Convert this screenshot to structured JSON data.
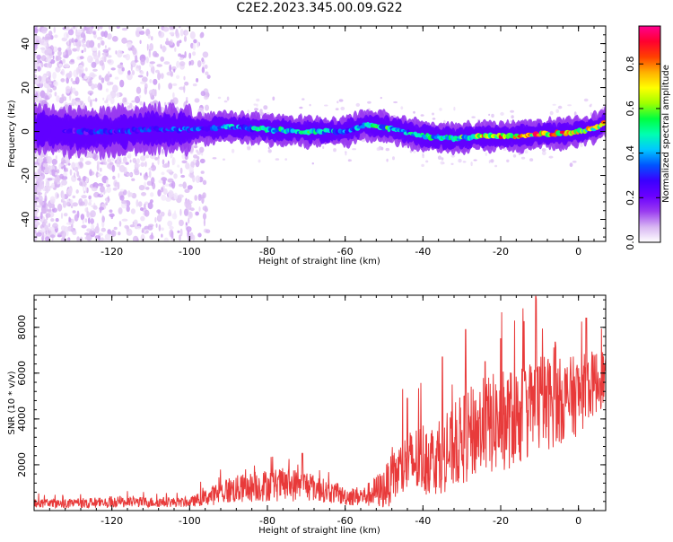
{
  "figure": {
    "title": "C2E2.2023.345.00.09.G22"
  },
  "chart_data": [
    {
      "type": "heatmap",
      "title": "",
      "xlabel": "Height of straight line (km)",
      "ylabel": "Frequency (Hz)",
      "xlim": [
        -140,
        7
      ],
      "ylim": [
        -50,
        48
      ],
      "x_ticks": [
        -120,
        -100,
        -80,
        -60,
        -40,
        -20,
        0
      ],
      "y_ticks": [
        -40,
        -20,
        0,
        20,
        40
      ],
      "grid": false,
      "colorbar": {
        "label": "Normalized spectral amplitude",
        "range": [
          0,
          0.97
        ],
        "ticks": [
          0.0,
          0.2,
          0.4,
          0.6,
          0.8
        ],
        "colors": [
          "#ffffff",
          "#d8b6f2",
          "#9a3cf0",
          "#6a00ff",
          "#3a00ff",
          "#0055ff",
          "#00c8ff",
          "#00ffb0",
          "#00ff40",
          "#a0ff00",
          "#ffff00",
          "#ffb000",
          "#ff4000",
          "#ff0030",
          "#ff0090"
        ]
      },
      "ridge": {
        "x": [
          -137,
          -130,
          -120,
          -110,
          -100,
          -90,
          -80,
          -70,
          -60,
          -55,
          -50,
          -45,
          -40,
          -35,
          -30,
          -25,
          -20,
          -15,
          -10,
          -5,
          0,
          3,
          5,
          7
        ],
        "y": [
          1,
          0,
          0,
          1,
          1,
          2,
          1,
          0,
          0,
          3,
          2,
          0,
          -2,
          -3,
          -3,
          -2,
          -2,
          -2,
          -1,
          -1,
          0,
          1,
          2,
          5
        ],
        "peak_amplitude": [
          0.3,
          0.3,
          0.35,
          0.35,
          0.4,
          0.45,
          0.5,
          0.55,
          0.45,
          0.5,
          0.55,
          0.5,
          0.5,
          0.55,
          0.6,
          0.75,
          0.85,
          0.9,
          0.85,
          0.85,
          0.8,
          0.75,
          0.8,
          0.9
        ]
      }
    },
    {
      "type": "line",
      "title": "",
      "xlabel": "Height of straight line (km)",
      "ylabel": "SNR (10 * v/v)",
      "xlim": [
        -140,
        7
      ],
      "ylim": [
        0,
        9400
      ],
      "x_ticks": [
        -120,
        -100,
        -80,
        -60,
        -40,
        -20,
        0
      ],
      "y_ticks": [
        2000,
        4000,
        6000,
        8000
      ],
      "grid": false,
      "line_color": "#e83a3a",
      "series": [
        {
          "x": [
            -140,
            -130,
            -120,
            -110,
            -100,
            -95,
            -90,
            -85,
            -80,
            -75,
            -70,
            -65,
            -60,
            -55,
            -50,
            -45,
            -40,
            -35,
            -30,
            -25,
            -20,
            -15,
            -10,
            -5,
            0,
            3,
            7
          ],
          "base": [
            250,
            250,
            300,
            300,
            300,
            500,
            700,
            800,
            900,
            900,
            900,
            700,
            500,
            500,
            700,
            1500,
            1800,
            1800,
            2500,
            3000,
            3200,
            3500,
            4000,
            4200,
            4500,
            5000,
            5500
          ],
          "amplitude": [
            400,
            400,
            500,
            450,
            400,
            800,
            1200,
            1300,
            1400,
            1500,
            1400,
            1000,
            800,
            900,
            1800,
            2800,
            3300,
            3000,
            4000,
            4300,
            4500,
            4300,
            4500,
            3800,
            3500,
            3000,
            2500
          ],
          "peaks": [
            [
              -29,
              7900
            ],
            [
              -11,
              9350
            ],
            [
              -14,
              8250
            ],
            [
              -20,
              7500
            ],
            [
              -24,
              6500
            ],
            [
              -44,
              4900
            ],
            [
              -71,
              2500
            ],
            [
              2,
              8400
            ],
            [
              -6,
              7350
            ],
            [
              -35,
              6700
            ]
          ]
        }
      ]
    }
  ]
}
